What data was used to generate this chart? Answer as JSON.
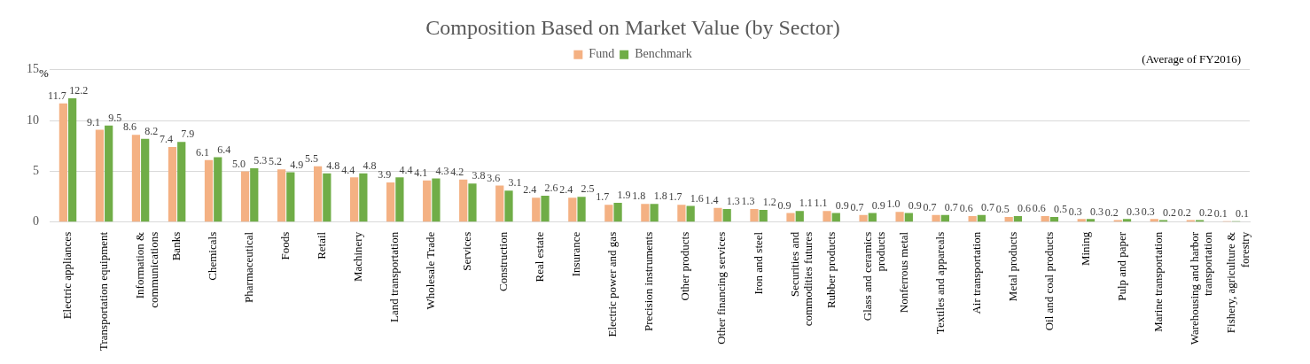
{
  "chart_data": {
    "type": "bar",
    "title": "Composition Based on Market Value (by Sector)",
    "subtitle": "(Average of FY2016)",
    "ylabel": "%",
    "categories": [
      "Electric appliances",
      "Transportation equipment",
      "Information & communications",
      "Banks",
      "Chemicals",
      "Pharmaceutical",
      "Foods",
      "Retail",
      "Machinery",
      "Land transportation",
      "Wholesale Trade",
      "Services",
      "Construction",
      "Real estate",
      "Insurance",
      "Electric power and gas",
      "Precision instruments",
      "Other products",
      "Other financing services",
      "Iron and steel",
      "Securities and commodities futures",
      "Rubber products",
      "Glass and ceramics products",
      "Nonferrous metal",
      "Textiles and appareals",
      "Air transportation",
      "Metal products",
      "Oil and coal products",
      "Mining",
      "Pulp and paper",
      "Marine transportation",
      "Warehousing and harbor transportation",
      "Fishery, agriculture & forestry"
    ],
    "series": [
      {
        "name": "Fund",
        "color": "#f4b183",
        "values": [
          11.7,
          9.1,
          8.6,
          7.4,
          6.1,
          5.0,
          5.2,
          5.5,
          4.4,
          3.9,
          4.1,
          4.2,
          3.6,
          2.4,
          2.4,
          1.7,
          1.8,
          1.7,
          1.4,
          1.3,
          0.9,
          1.1,
          0.7,
          1.0,
          0.7,
          0.6,
          0.5,
          0.6,
          0.3,
          0.2,
          0.3,
          0.2,
          0.1
        ],
        "value_labels": [
          "11.7",
          "9.1",
          "8.6",
          "7.4",
          "6.1",
          "5.0",
          "5.2",
          "5.5",
          "4.4",
          "3.9",
          "4.1",
          "4.2",
          "3.6",
          "2.4",
          "2.4",
          "1.7",
          "1.8",
          "1.7",
          "1.4",
          "1.3",
          "0.9",
          "1.1",
          "0.7",
          "1.0",
          "0.7",
          "0.6",
          "0.5",
          "0.6",
          "0.3",
          "0.2",
          "0.3",
          "0.2",
          "0.1"
        ]
      },
      {
        "name": "Benchmark",
        "color": "#70ad47",
        "values": [
          12.2,
          9.5,
          8.2,
          7.9,
          6.4,
          5.3,
          4.9,
          4.8,
          4.8,
          4.4,
          4.3,
          3.8,
          3.1,
          2.6,
          2.5,
          1.9,
          1.8,
          1.6,
          1.3,
          1.2,
          1.1,
          0.9,
          0.9,
          0.9,
          0.7,
          0.7,
          0.6,
          0.5,
          0.3,
          0.3,
          0.2,
          0.2,
          0.1
        ],
        "value_labels": [
          "12.2",
          "9.5",
          "8.2",
          "7.9",
          "6.4",
          "5.3",
          "4.9",
          "4.8",
          "4.8",
          "4.4",
          "4.3",
          "3.8",
          "3.1",
          "2.6",
          "2.5",
          "1.9",
          "1.8",
          "1.6",
          "1.3",
          "1.2",
          "1.1",
          "0.9",
          "0.9",
          "0.9",
          "0.7",
          "0.7",
          "0.6",
          "0.5",
          "0.3",
          "0.3",
          "0.2",
          "0.2",
          "0.1"
        ]
      }
    ],
    "ylim": [
      0,
      15
    ],
    "yticks": [
      0,
      5,
      10,
      15
    ],
    "grid": "y",
    "legend": "top"
  }
}
